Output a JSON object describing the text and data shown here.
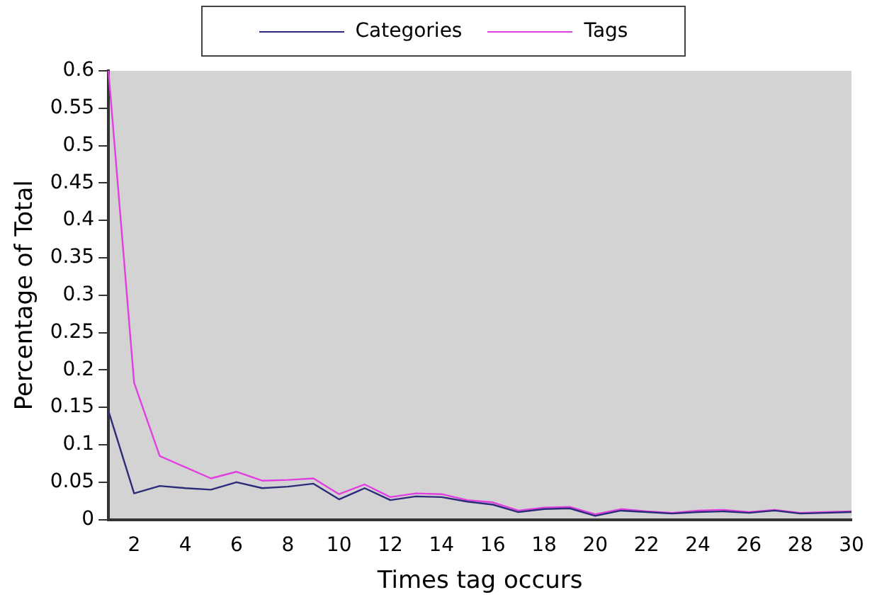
{
  "chart_data": {
    "type": "line",
    "xlabel": "Times tag occurs",
    "ylabel": "Percentage of Total",
    "x": [
      1,
      2,
      3,
      4,
      5,
      6,
      7,
      8,
      9,
      10,
      11,
      12,
      13,
      14,
      15,
      16,
      17,
      18,
      19,
      20,
      21,
      22,
      23,
      24,
      25,
      26,
      27,
      28,
      29,
      30
    ],
    "series": [
      {
        "name": "Categories",
        "color": "#2b2b7a",
        "values": [
          0.145,
          0.035,
          0.045,
          0.042,
          0.04,
          0.05,
          0.042,
          0.044,
          0.048,
          0.027,
          0.042,
          0.026,
          0.031,
          0.03,
          0.024,
          0.02,
          0.01,
          0.014,
          0.015,
          0.005,
          0.012,
          0.01,
          0.008,
          0.01,
          0.011,
          0.009,
          0.012,
          0.008,
          0.009,
          0.01
        ]
      },
      {
        "name": "Tags",
        "color": "#e040e0",
        "values": [
          0.6,
          0.183,
          0.085,
          0.07,
          0.055,
          0.064,
          0.052,
          0.053,
          0.055,
          0.034,
          0.047,
          0.03,
          0.035,
          0.034,
          0.026,
          0.023,
          0.012,
          0.016,
          0.017,
          0.007,
          0.014,
          0.011,
          0.009,
          0.012,
          0.013,
          0.01,
          0.013,
          0.009,
          0.01,
          0.011
        ]
      }
    ],
    "xlim": [
      1,
      30
    ],
    "xticks": [
      2,
      4,
      6,
      8,
      10,
      12,
      14,
      16,
      18,
      20,
      22,
      24,
      26,
      28,
      30
    ],
    "ylim": [
      0,
      0.6
    ],
    "yticks": [
      0,
      0.05,
      0.1,
      0.15,
      0.2,
      0.25,
      0.3,
      0.35,
      0.4,
      0.45,
      0.5,
      0.55,
      0.6
    ],
    "grid": false,
    "legend": "top",
    "marker": "none",
    "line_style": "solid"
  }
}
